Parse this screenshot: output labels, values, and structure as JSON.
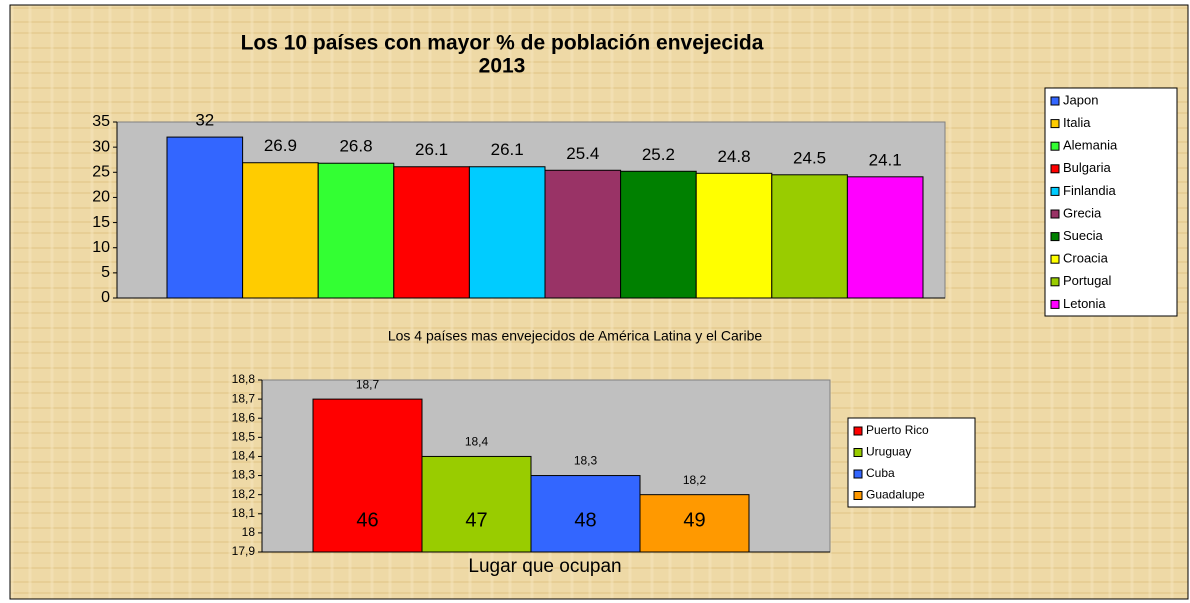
{
  "charts": [
    {
      "type": "bar",
      "title": "Los 10 países con mayor % de población envejecida",
      "subtitle": "2013",
      "categories": [
        "Japon",
        "Italia",
        "Alemania",
        "Bulgaria",
        "Finlandia",
        "Grecia",
        "Suecia",
        "Croacia",
        "Portugal",
        "Letonia"
      ],
      "values": [
        32,
        26.9,
        26.8,
        26.1,
        26.1,
        25.4,
        25.2,
        24.8,
        24.5,
        24.1
      ],
      "colors": [
        "#3366ff",
        "#ffcc00",
        "#33ff33",
        "#ff0000",
        "#00ccff",
        "#993366",
        "#008000",
        "#ffff00",
        "#99cc00",
        "#ff00ff"
      ],
      "ylim": [
        0,
        35
      ],
      "yticks": [
        0,
        5,
        10,
        15,
        20,
        25,
        30,
        35
      ],
      "legend": "right"
    },
    {
      "type": "bar",
      "title": "Los 4 países mas envejecidos de América Latina y el Caribe",
      "x_label": "Lugar que ocupan",
      "categories": [
        "Puerto Rico",
        "Uruguay",
        "Cuba",
        "Guadalupe"
      ],
      "values": [
        18.7,
        18.4,
        18.3,
        18.2
      ],
      "value_labels": [
        "18,7",
        "18,4",
        "18,3",
        "18,2"
      ],
      "ranks": [
        46,
        47,
        48,
        49
      ],
      "colors": [
        "#ff0000",
        "#99cc00",
        "#3366ff",
        "#ff9900"
      ],
      "ylim": [
        17.9,
        18.8
      ],
      "yticks": [
        {
          "value": 17.9,
          "label": "17,9"
        },
        {
          "value": 18,
          "label": "18"
        },
        {
          "value": 18.1,
          "label": "18,1"
        },
        {
          "value": 18.2,
          "label": "18,2"
        },
        {
          "value": 18.3,
          "label": "18,3"
        },
        {
          "value": 18.4,
          "label": "18,4"
        },
        {
          "value": 18.5,
          "label": "18,5"
        },
        {
          "value": 18.6,
          "label": "18,6"
        },
        {
          "value": 18.7,
          "label": "18,7"
        },
        {
          "value": 18.8,
          "label": "18,8"
        }
      ],
      "legend": "right"
    }
  ]
}
